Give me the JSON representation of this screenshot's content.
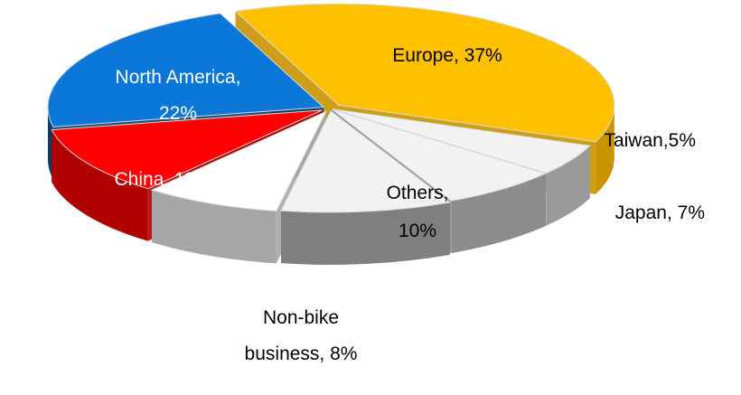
{
  "chart_data": {
    "type": "pie",
    "style": "3d-exploded",
    "title": "",
    "slices": [
      {
        "name": "Europe",
        "value": 37,
        "label_lines": [
          "Europe, 37%"
        ],
        "color": "#FFC000",
        "side_color": "#C99400",
        "text_color": "#000000"
      },
      {
        "name": "Taiwan",
        "value": 5,
        "label_lines": [
          "Taiwan,5%"
        ],
        "color": "#F2F2F2",
        "side_color": "#9A9A9A",
        "text_color": "#000000"
      },
      {
        "name": "Japan",
        "value": 7,
        "label_lines": [
          "Japan, 7%"
        ],
        "color": "#F2F2F2",
        "side_color": "#8C8C8C",
        "text_color": "#000000"
      },
      {
        "name": "Others",
        "value": 10,
        "label_lines": [
          "Others,",
          "10%"
        ],
        "color": "#F2F2F2",
        "side_color": "#7F7F7F",
        "text_color": "#000000"
      },
      {
        "name": "Non-bike business",
        "value": 8,
        "label_lines": [
          "Non-bike",
          "business, 8%"
        ],
        "color": "#FFFFFF",
        "side_color": "#A6A6A6",
        "text_color": "#000000"
      },
      {
        "name": "China",
        "value": 11,
        "label_lines": [
          "China, 11%"
        ],
        "color": "#FF0000",
        "side_color": "#B00000",
        "text_color": "#FFFFFF"
      },
      {
        "name": "North America",
        "value": 22,
        "label_lines": [
          "North America,",
          "22%"
        ],
        "color": "#0B78D9",
        "side_color": "#0A3B6B",
        "text_color": "#FFFFFF"
      }
    ]
  }
}
